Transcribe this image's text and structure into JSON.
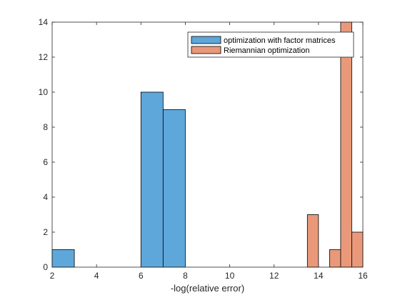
{
  "chart_data": {
    "type": "bar",
    "subtype": "histogram",
    "title": "",
    "xlabel": "-log(relative error)",
    "ylabel": "",
    "xlim": [
      2,
      16
    ],
    "ylim": [
      0,
      14
    ],
    "xticks": [
      2,
      4,
      6,
      8,
      10,
      12,
      14,
      16
    ],
    "yticks": [
      0,
      2,
      4,
      6,
      8,
      10,
      12,
      14
    ],
    "grid": false,
    "legend_position": "top-right",
    "series": [
      {
        "name": "optimization with factor matrices",
        "color": "#5EA7DA",
        "bins": [
          {
            "x0": 2,
            "x1": 3,
            "count": 1
          },
          {
            "x0": 6,
            "x1": 7,
            "count": 10
          },
          {
            "x0": 7,
            "x1": 8,
            "count": 9
          }
        ]
      },
      {
        "name": "Riemannian optimization",
        "color": "#E9997A",
        "bins": [
          {
            "x0": 13.5,
            "x1": 14.0,
            "count": 3
          },
          {
            "x0": 14.5,
            "x1": 15.0,
            "count": 1
          },
          {
            "x0": 15.0,
            "x1": 15.5,
            "count": 14
          },
          {
            "x0": 15.5,
            "x1": 16.0,
            "count": 2
          }
        ]
      }
    ]
  }
}
